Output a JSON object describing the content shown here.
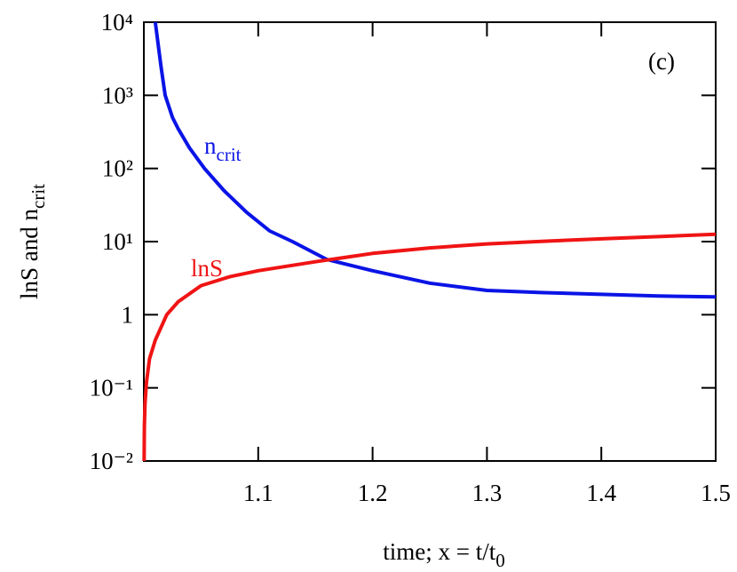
{
  "chart_data": {
    "type": "line",
    "annotation": "(c)",
    "x_label": "time; x = t/t",
    "x_label_sub": "0",
    "y_label": "lnS and n",
    "y_label_sub": "crit",
    "xlim": [
      1.0,
      1.5
    ],
    "xticks": [
      1.1,
      1.2,
      1.3,
      1.4,
      1.5
    ],
    "ylim": [
      0.01,
      10000
    ],
    "log_y": true,
    "yticks": [
      {
        "value": 0.01,
        "label": "10⁻²"
      },
      {
        "value": 0.1,
        "label": "10⁻¹"
      },
      1,
      {
        "value": 10,
        "label": "10¹"
      },
      {
        "value": 100,
        "label": "10²"
      },
      {
        "value": 1000,
        "label": "10³"
      },
      {
        "value": 10000,
        "label": "10⁴"
      }
    ],
    "series": [
      {
        "name": "n",
        "name_sub": "crit",
        "color": "#0a14e6",
        "x": [
          1.01,
          1.015,
          1.0186,
          1.025,
          1.03,
          1.04,
          1.053,
          1.07,
          1.09,
          1.11,
          1.13,
          1.16,
          1.2,
          1.25,
          1.3,
          1.35,
          1.4,
          1.45,
          1.5
        ],
        "values": [
          10000,
          2500,
          1000,
          500,
          350,
          190,
          100,
          50,
          25,
          14,
          10,
          5.7,
          4.0,
          2.7,
          2.15,
          2.0,
          1.9,
          1.8,
          1.75
        ]
      },
      {
        "name": "lnS",
        "color": "#f01414",
        "x": [
          1.0002,
          1.0005,
          1.001,
          1.0023,
          1.005,
          1.01,
          1.02,
          1.03,
          1.05,
          1.075,
          1.1,
          1.15,
          1.2,
          1.25,
          1.3,
          1.35,
          1.4,
          1.45,
          1.5
        ],
        "values": [
          0.01,
          0.03,
          0.06,
          0.12,
          0.25,
          0.45,
          1.0,
          1.5,
          2.5,
          3.3,
          4.0,
          5.3,
          6.9,
          8.2,
          9.3,
          10.1,
          10.9,
          11.7,
          12.6
        ]
      }
    ]
  }
}
